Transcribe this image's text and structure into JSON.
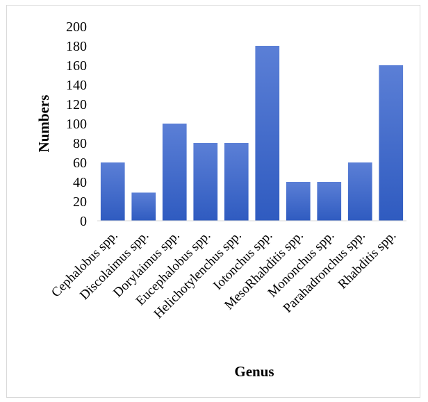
{
  "chart_data": {
    "type": "bar",
    "title": "",
    "xlabel": "Genus",
    "ylabel": "Numbers",
    "ylim": [
      0,
      200
    ],
    "yticks": [
      0,
      20,
      40,
      60,
      80,
      100,
      120,
      140,
      160,
      180,
      200
    ],
    "grid": false,
    "categories": [
      "Cephalobus spp.",
      "Discolaimus spp.",
      "Dorylaimus spp.",
      "Eucephalobus spp.",
      "Helichotylenchus spp.",
      "Iotonchus spp.",
      "MesoRhabditis spp.",
      "Mononchus spp.",
      "Parahadronchus spp.",
      "Rhabditis spp."
    ],
    "values": [
      60,
      29,
      100,
      80,
      80,
      180,
      40,
      40,
      60,
      160
    ],
    "colors": {
      "bar_top": "#5b7fd6",
      "bar_bottom": "#2f5bc0",
      "axis": "#d9d9d9"
    }
  }
}
